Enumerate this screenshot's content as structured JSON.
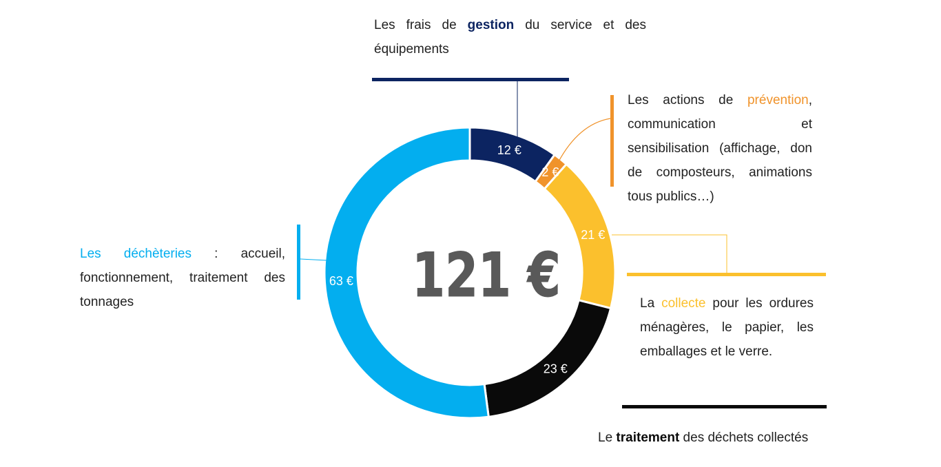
{
  "chart_data": {
    "type": "pie",
    "donut": true,
    "total_label": "121 €",
    "categories": [
      "gestion",
      "prévention",
      "collecte",
      "traitement",
      "déchèteries"
    ],
    "values": [
      12,
      2,
      21,
      23,
      63
    ],
    "value_labels": [
      "12 €",
      "2 €",
      "21 €",
      "23 €",
      "63 €"
    ],
    "colors": [
      "#0c2461",
      "#f0932b",
      "#fbc02d",
      "#0a0a0a",
      "#03aeef"
    ]
  },
  "annotations": {
    "gestion": {
      "pre": "Les frais de ",
      "keyword": "gestion",
      "post": " du service et des équipements",
      "color": "#0c2461"
    },
    "prevention": {
      "pre": "Les actions de ",
      "keyword": "prévention",
      "post": ", communication et sensibilisation (affichage, don de composteurs, animations tous publics…)",
      "color": "#f0932b"
    },
    "collecte": {
      "pre": "La ",
      "keyword": "collecte",
      "post": " pour les ordures ménagères, le papier, les emballages et le verre.",
      "color": "#fbc02d"
    },
    "traitement": {
      "pre": "Le ",
      "keyword": "traitement",
      "post": " des déchets collectés",
      "color": "#0a0a0a"
    },
    "decheteries": {
      "pre": "",
      "keyword": "Les déchèteries",
      "post": " : accueil, fonctionnement, traitement des tonnages",
      "color": "#03aeef"
    }
  }
}
